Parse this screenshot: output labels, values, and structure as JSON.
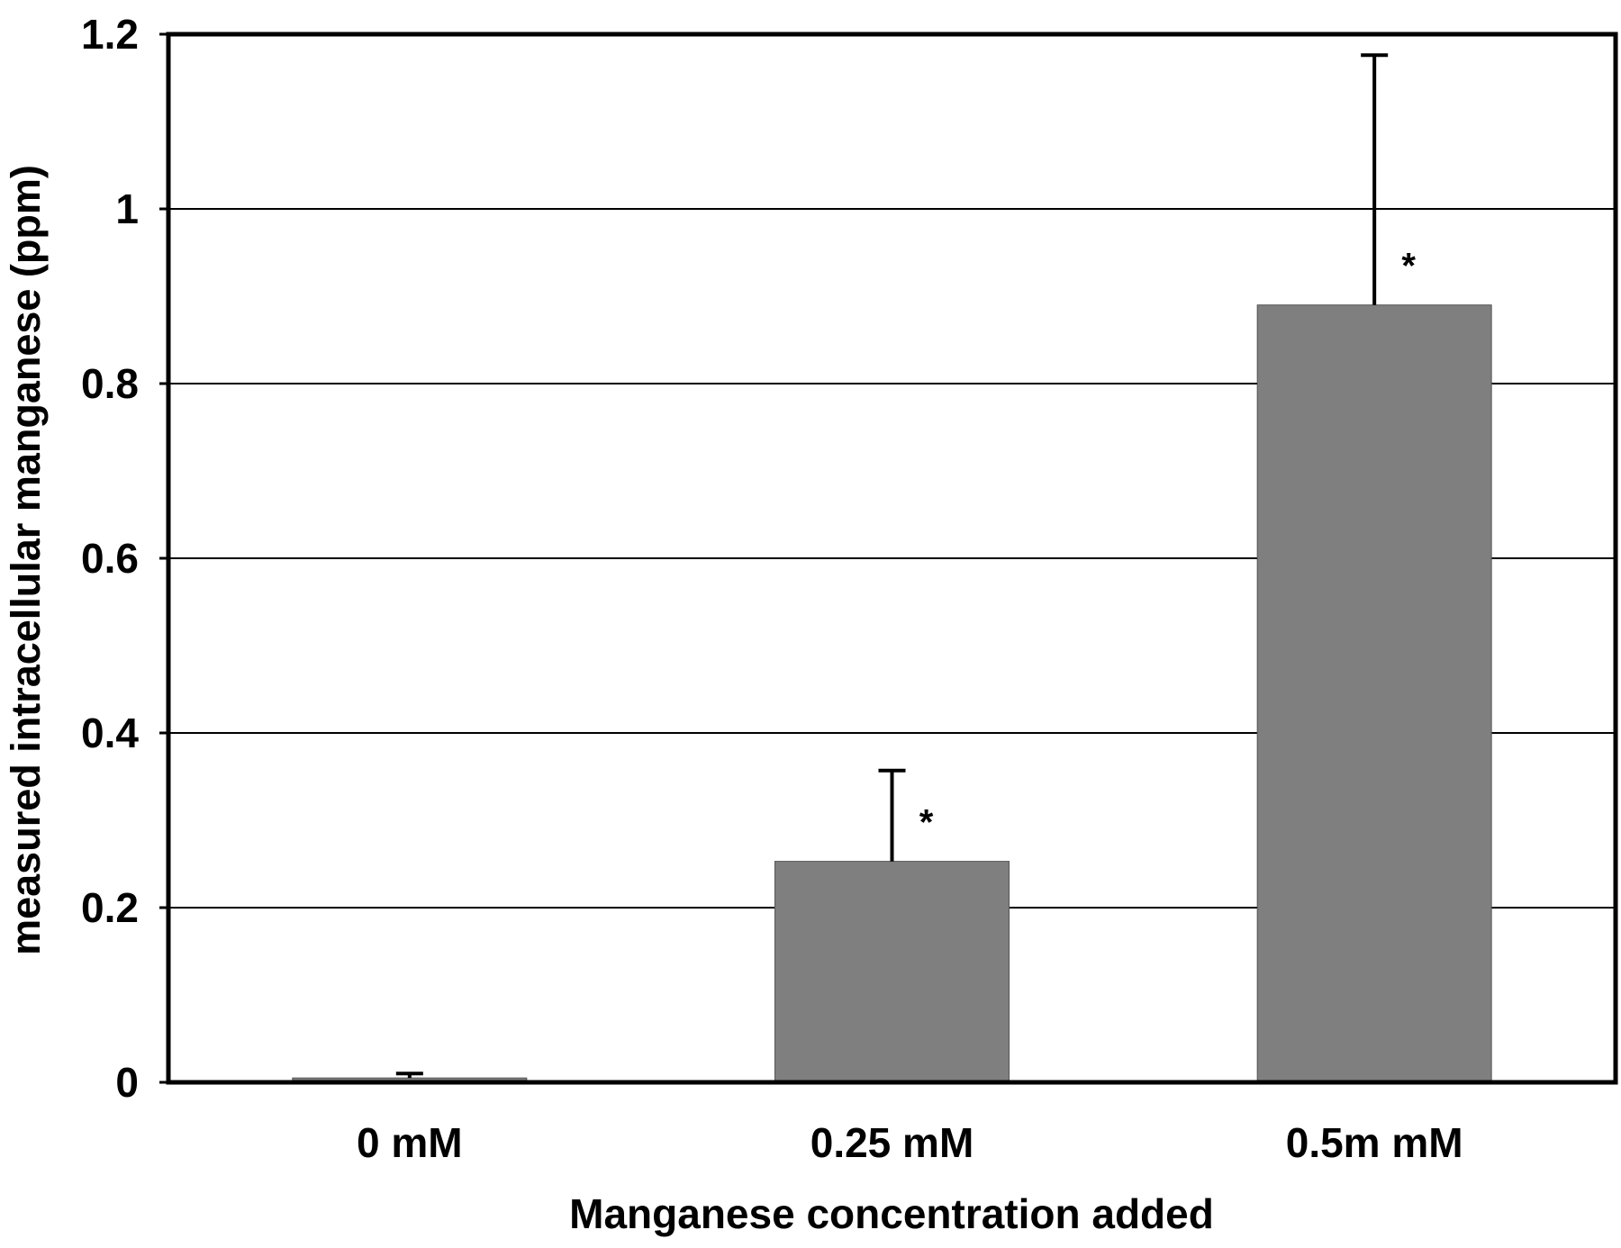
{
  "chart_data": {
    "type": "bar",
    "title": "",
    "xlabel": "Manganese concentration added",
    "ylabel": "measured intracellular manganese (ppm)",
    "categories": [
      "0 mM",
      "0.25 mM",
      "0.5m mM"
    ],
    "values": [
      0.005,
      0.253,
      0.89
    ],
    "error_upper": [
      0.01,
      0.357,
      1.176
    ],
    "annotations": [
      "",
      "*",
      "*"
    ],
    "ylim": [
      0,
      1.2
    ],
    "yticks": [
      "0",
      "0.2",
      "0.4",
      "0.6",
      "0.8",
      "1",
      "1.2"
    ],
    "grid": true,
    "bar_color": "#7f7f7f",
    "grid_color": "#000000"
  }
}
